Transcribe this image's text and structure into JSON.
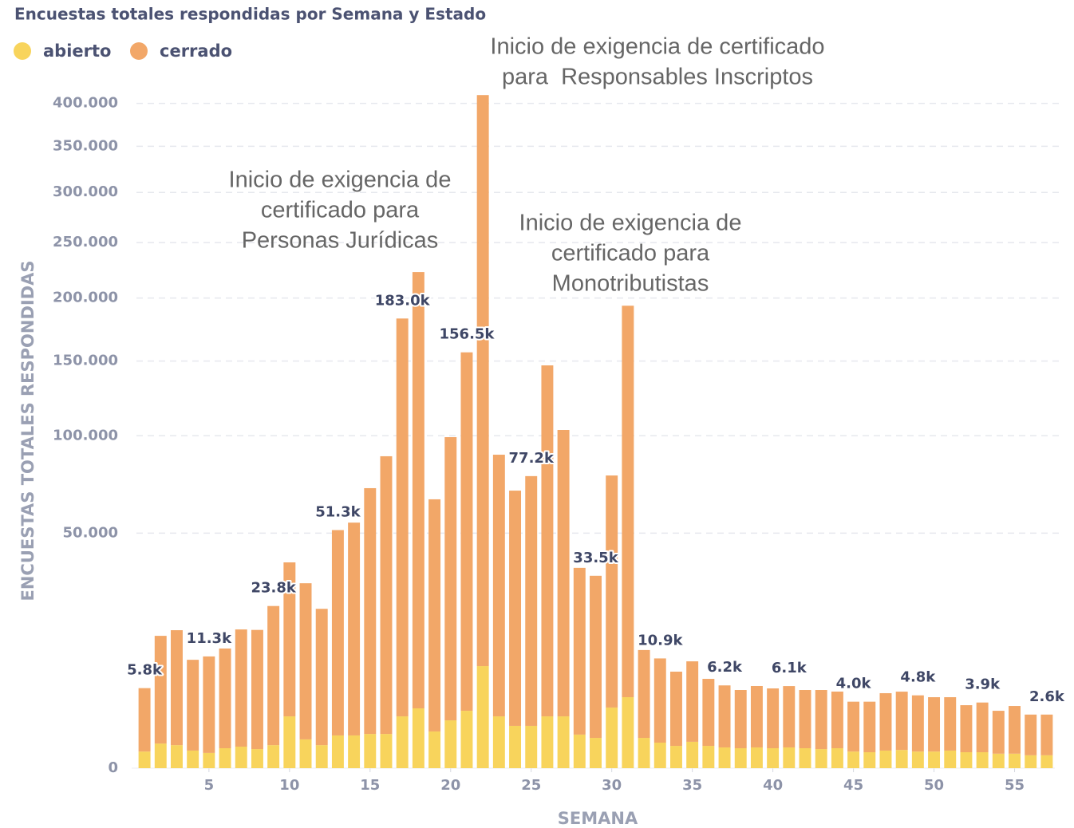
{
  "chart_data": {
    "type": "bar",
    "stacked": true,
    "yscale": "sqrt",
    "title": "Encuestas totales respondidas por Semana y Estado",
    "xlabel": "SEMANA",
    "ylabel": "ENCUESTAS TOTALES RESPONDIDAS",
    "legend": "top-left",
    "grid": true,
    "x": [
      1,
      2,
      3,
      4,
      5,
      6,
      7,
      8,
      9,
      10,
      11,
      12,
      13,
      14,
      15,
      16,
      17,
      18,
      19,
      20,
      21,
      22,
      23,
      24,
      25,
      26,
      27,
      28,
      29,
      30,
      31,
      32,
      33,
      34,
      35,
      36,
      37,
      38,
      39,
      40,
      41,
      42,
      43,
      44,
      45,
      46,
      47,
      48,
      49,
      50,
      51,
      52,
      53,
      54,
      55,
      56,
      57
    ],
    "xlim": [
      0.5,
      57.5
    ],
    "xticks": [
      5,
      10,
      15,
      20,
      25,
      30,
      35,
      40,
      45,
      50,
      55
    ],
    "ylim": [
      0,
      420000
    ],
    "yticks": [
      0,
      {
        "value": 50000,
        "label": "50.000"
      },
      {
        "value": 100000,
        "label": "100.000"
      },
      {
        "value": 150000,
        "label": "150.000"
      },
      {
        "value": 200000,
        "label": "200.000"
      },
      {
        "value": 250000,
        "label": "250.000"
      },
      {
        "value": 300000,
        "label": "300.000"
      },
      {
        "value": 350000,
        "label": "350.000"
      },
      {
        "value": 400000,
        "label": "400.000"
      }
    ],
    "series": [
      {
        "name": "abierto",
        "color": "#f8d45c",
        "values": [
          250,
          550,
          480,
          280,
          210,
          360,
          420,
          330,
          480,
          2430,
          750,
          480,
          970,
          970,
          1060,
          1060,
          2430,
          3240,
          1220,
          2070,
          2980,
          9430,
          2430,
          1620,
          1620,
          2430,
          2430,
          1020,
          830,
          3330,
          4560,
          830,
          590,
          450,
          630,
          450,
          390,
          360,
          390,
          360,
          390,
          360,
          330,
          360,
          250,
          230,
          280,
          300,
          250,
          250,
          280,
          230,
          230,
          190,
          190,
          150,
          150
        ]
      },
      {
        "name": "cerrado",
        "color": "#f2a768",
        "values": [
          5550,
          15300,
          16750,
          10350,
          11090,
          12600,
          17000,
          16970,
          23320,
          35900,
          30200,
          22500,
          50330,
          53600,
          69900,
          87000,
          180570,
          219500,
          64200,
          97100,
          153520,
          400600,
          86500,
          68100,
          75580,
          144400,
          101100,
          35300,
          32670,
          74200,
          189000,
          11800,
          10310,
          7980,
          9700,
          6770,
          5810,
          5170,
          5720,
          5400,
          5710,
          5170,
          5200,
          4950,
          3750,
          3770,
          4810,
          5000,
          4550,
          4310,
          4280,
          3360,
          3670,
          2790,
          3310,
          2450,
          2450
        ]
      }
    ],
    "totals": [
      5800,
      null,
      null,
      null,
      11300,
      null,
      null,
      null,
      23800,
      null,
      null,
      null,
      51300,
      null,
      null,
      null,
      183000,
      null,
      null,
      null,
      156500,
      null,
      null,
      null,
      77200,
      null,
      null,
      null,
      33500,
      null,
      null,
      null,
      10900,
      null,
      null,
      null,
      6200,
      null,
      null,
      null,
      6100,
      null,
      null,
      null,
      4000,
      null,
      null,
      null,
      4800,
      null,
      null,
      null,
      3900,
      null,
      null,
      null,
      2600
    ],
    "total_labels": [
      "5.8k",
      null,
      null,
      null,
      "11.3k",
      null,
      null,
      null,
      "23.8k",
      null,
      null,
      null,
      "51.3k",
      null,
      null,
      null,
      "183.0k",
      null,
      null,
      null,
      "156.5k",
      null,
      null,
      null,
      "77.2k",
      null,
      null,
      null,
      "33.5k",
      null,
      null,
      null,
      "10.9k",
      null,
      null,
      null,
      "6.2k",
      null,
      null,
      null,
      "6.1k",
      null,
      null,
      null,
      "4.0k",
      null,
      null,
      null,
      "4.8k",
      null,
      null,
      null,
      "3.9k",
      null,
      null,
      null,
      "2.6k"
    ],
    "annotations": [
      [
        "Inicio de exigencia de certificado",
        "para  Responsables Inscriptos"
      ],
      [
        "Inicio de exigencia de",
        "certificado para",
        "Personas Jurídicas"
      ],
      [
        "Inicio de exigencia de",
        "certificado para",
        "Monotributistas"
      ]
    ]
  }
}
